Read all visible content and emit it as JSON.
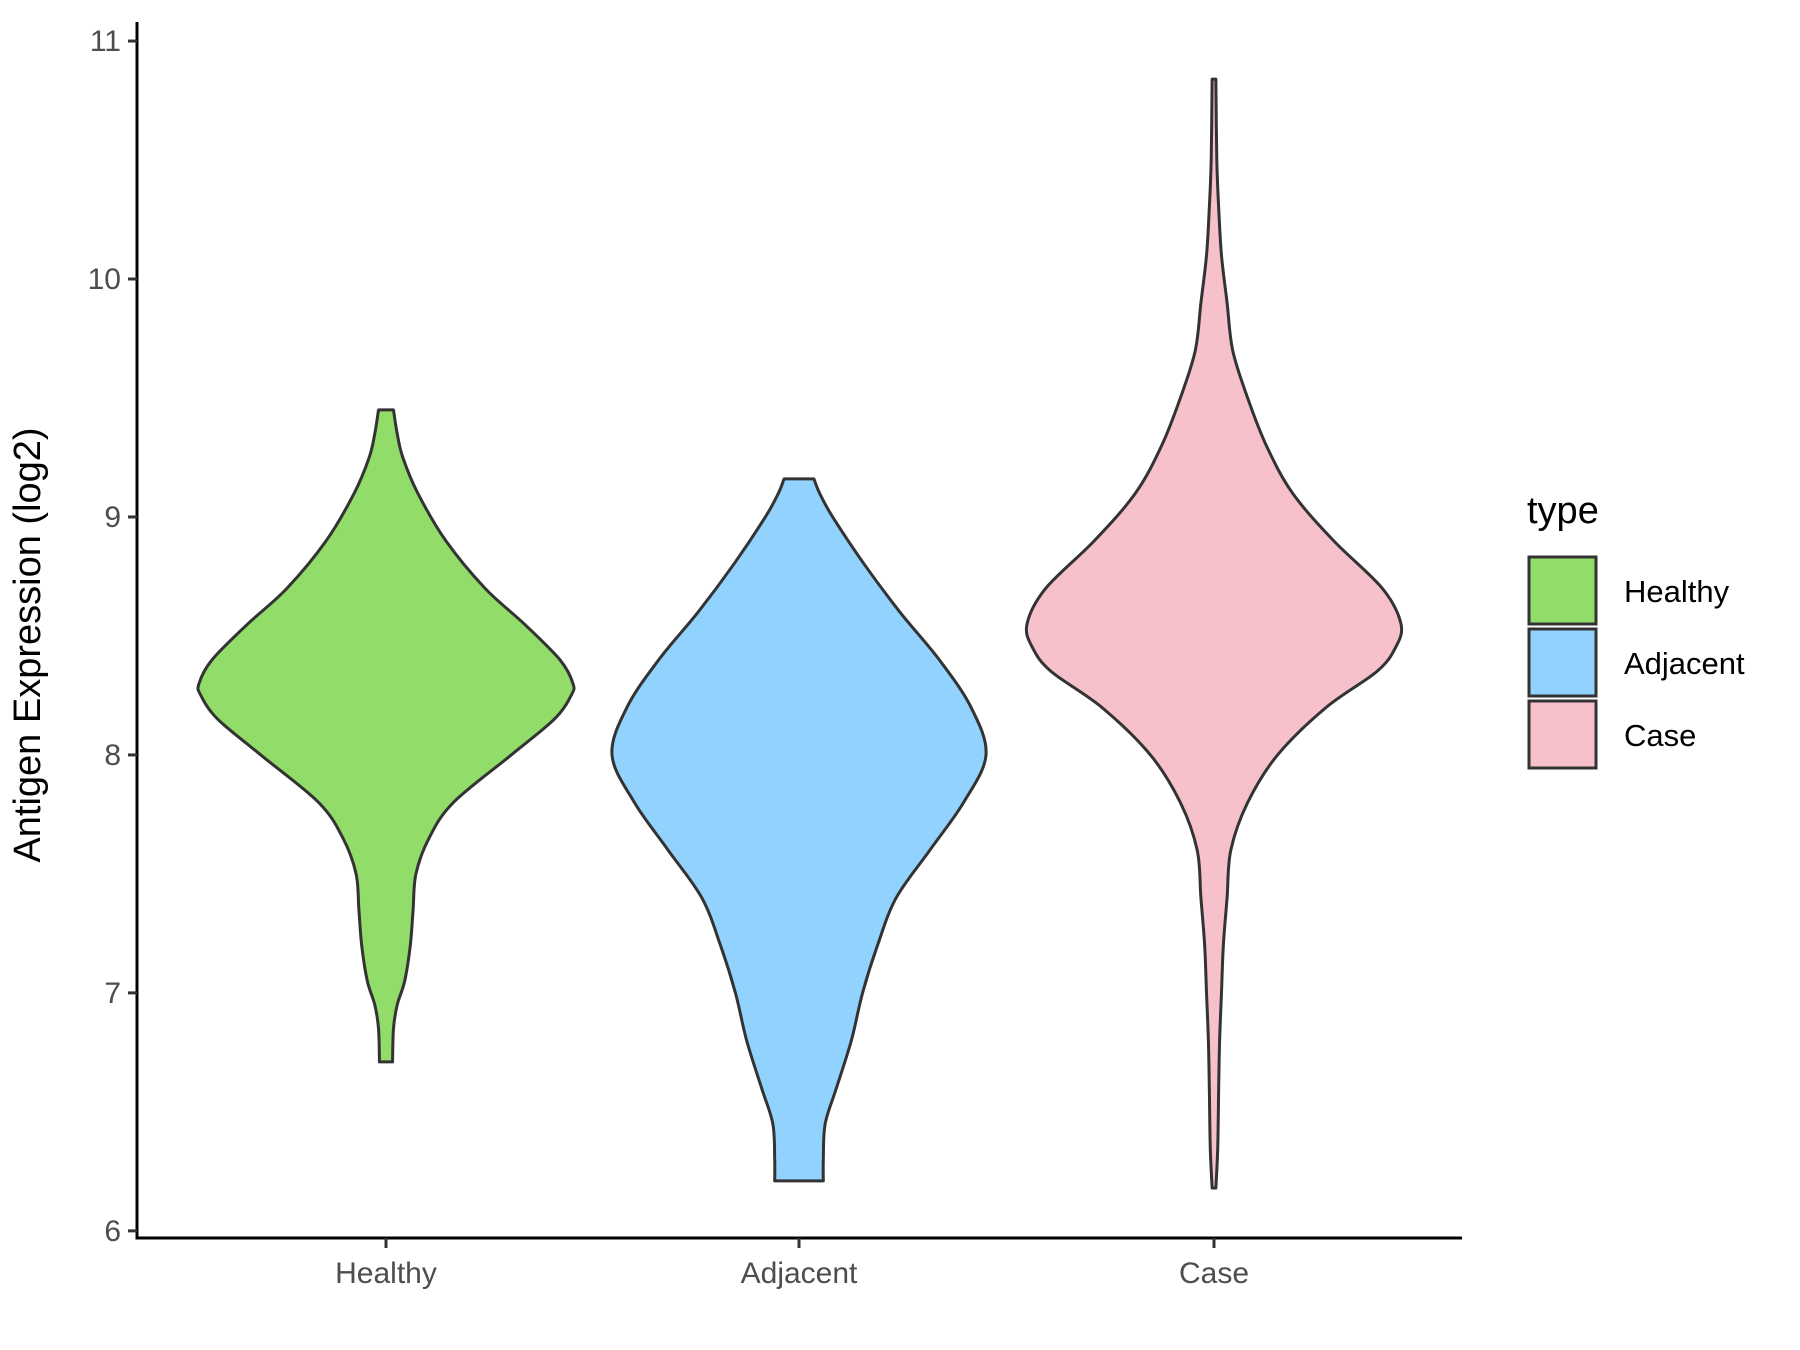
{
  "chart_data": {
    "type": "violin",
    "ylabel": "Antigen Expression (log2)",
    "xlabel": "",
    "ylim": [
      5.97,
      11.08
    ],
    "yticks": [
      6,
      7,
      8,
      9,
      10,
      11
    ],
    "categories": [
      "Healthy",
      "Adjacent",
      "Case"
    ],
    "grid": false,
    "legend": {
      "title": "type",
      "position": "right",
      "entries": [
        "Healthy",
        "Adjacent",
        "Case"
      ]
    },
    "colors": {
      "Healthy": "#92dc6a",
      "Adjacent": "#92d2fe",
      "Case": "#f7c1cb",
      "outline": "#333333"
    },
    "series": [
      {
        "name": "Healthy",
        "min": 6.71,
        "max": 9.45,
        "density": [
          [
            6.71,
            0.035
          ],
          [
            6.85,
            0.04
          ],
          [
            6.95,
            0.06
          ],
          [
            7.05,
            0.1
          ],
          [
            7.2,
            0.13
          ],
          [
            7.35,
            0.145
          ],
          [
            7.5,
            0.16
          ],
          [
            7.65,
            0.23
          ],
          [
            7.8,
            0.36
          ],
          [
            8.0,
            0.67
          ],
          [
            8.15,
            0.9
          ],
          [
            8.25,
            0.99
          ],
          [
            8.3,
            1.0
          ],
          [
            8.4,
            0.93
          ],
          [
            8.55,
            0.74
          ],
          [
            8.7,
            0.53
          ],
          [
            8.9,
            0.32
          ],
          [
            9.1,
            0.17
          ],
          [
            9.25,
            0.09
          ],
          [
            9.35,
            0.06
          ],
          [
            9.45,
            0.04
          ]
        ]
      },
      {
        "name": "Adjacent",
        "min": 6.21,
        "max": 9.16,
        "density": [
          [
            6.21,
            0.13
          ],
          [
            6.3,
            0.13
          ],
          [
            6.45,
            0.14
          ],
          [
            6.6,
            0.2
          ],
          [
            6.8,
            0.28
          ],
          [
            7.0,
            0.34
          ],
          [
            7.2,
            0.42
          ],
          [
            7.4,
            0.52
          ],
          [
            7.6,
            0.7
          ],
          [
            7.8,
            0.88
          ],
          [
            8.0,
            1.0
          ],
          [
            8.2,
            0.92
          ],
          [
            8.4,
            0.75
          ],
          [
            8.6,
            0.54
          ],
          [
            8.8,
            0.35
          ],
          [
            9.0,
            0.18
          ],
          [
            9.1,
            0.11
          ],
          [
            9.16,
            0.08
          ]
        ]
      },
      {
        "name": "Case",
        "min": 6.18,
        "max": 10.84,
        "density": [
          [
            6.18,
            0.01
          ],
          [
            6.35,
            0.02
          ],
          [
            6.6,
            0.025
          ],
          [
            6.8,
            0.03
          ],
          [
            7.0,
            0.04
          ],
          [
            7.2,
            0.05
          ],
          [
            7.4,
            0.07
          ],
          [
            7.6,
            0.09
          ],
          [
            7.8,
            0.18
          ],
          [
            8.0,
            0.34
          ],
          [
            8.2,
            0.6
          ],
          [
            8.35,
            0.87
          ],
          [
            8.45,
            0.97
          ],
          [
            8.55,
            1.0
          ],
          [
            8.7,
            0.9
          ],
          [
            8.9,
            0.64
          ],
          [
            9.1,
            0.42
          ],
          [
            9.3,
            0.28
          ],
          [
            9.5,
            0.18
          ],
          [
            9.7,
            0.1
          ],
          [
            9.9,
            0.07
          ],
          [
            10.1,
            0.04
          ],
          [
            10.3,
            0.025
          ],
          [
            10.5,
            0.015
          ],
          [
            10.84,
            0.01
          ]
        ]
      }
    ]
  }
}
